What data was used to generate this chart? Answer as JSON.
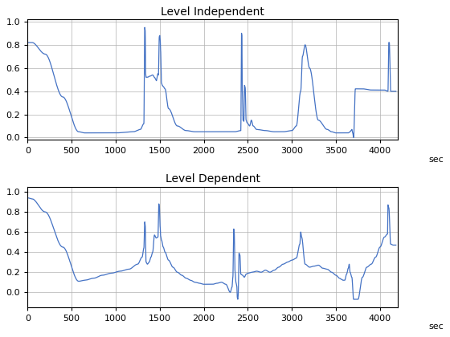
{
  "title1": "Level Independent",
  "title2": "Level Dependent",
  "xlabel": "sec",
  "xlim": [
    0,
    4200
  ],
  "ylim1": [
    -0.02,
    1.02
  ],
  "ylim2": [
    -0.15,
    1.05
  ],
  "xticks": [
    0,
    500,
    1000,
    1500,
    2000,
    2500,
    3000,
    3500,
    4000
  ],
  "yticks1": [
    0,
    0.2,
    0.4,
    0.6,
    0.8,
    1
  ],
  "yticks2": [
    0,
    0.2,
    0.4,
    0.6,
    0.8,
    1
  ],
  "line_color": "#4472C4",
  "line_width": 0.9,
  "bg_color": "#ffffff",
  "grid_color": "#b0b0b0"
}
